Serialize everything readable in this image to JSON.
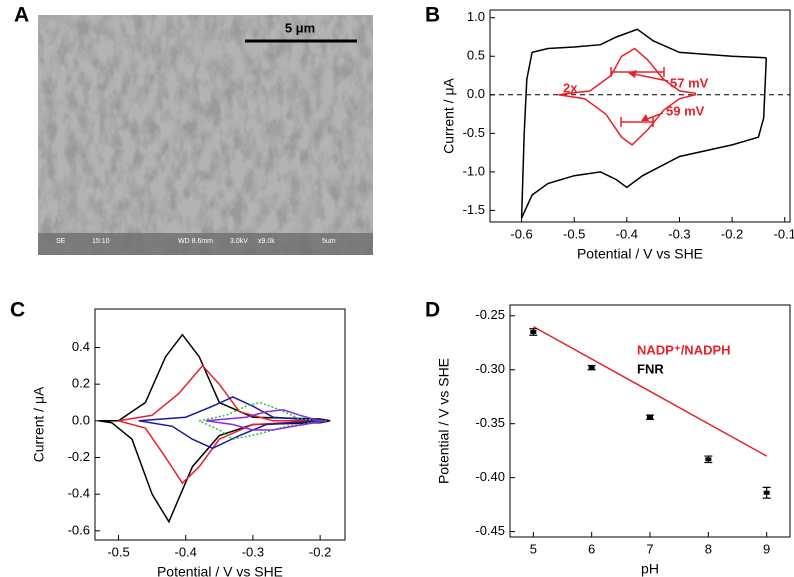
{
  "panel_a": {
    "panel": "A",
    "scale_bar": "5 μm",
    "info_bar": [
      "SE",
      "15:10",
      "WD 8.6mm",
      "3.0kV",
      "x9.0k",
      "5um"
    ]
  },
  "chart_data": [
    {
      "type": "line",
      "panel": "B",
      "xlabel": "Potential / V vs SHE",
      "ylabel": "Current / μA",
      "xlim": [
        -0.66,
        -0.09
      ],
      "xticks": [
        -0.6,
        -0.5,
        -0.4,
        -0.3,
        -0.2,
        -0.1
      ],
      "ylim": [
        -1.65,
        1.1
      ],
      "yticks": [
        {
          "value": 1,
          "label": "1.0"
        },
        0.5,
        {
          "value": 0,
          "label": "0.0"
        },
        -0.5,
        {
          "value": -1,
          "label": "-1.0"
        },
        -1.5
      ],
      "zero_line": true,
      "annotations": [
        "2x",
        "57 mV",
        "59 mV"
      ],
      "series": [
        {
          "color": "#000000",
          "x": [
            -0.135,
            -0.2,
            -0.3,
            -0.35,
            -0.38,
            -0.42,
            -0.45,
            -0.5,
            -0.55,
            -0.58,
            -0.59,
            -0.595,
            -0.6,
            -0.58,
            -0.55,
            -0.5,
            -0.45,
            -0.42,
            -0.4,
            -0.37,
            -0.3,
            -0.2,
            -0.15,
            -0.14,
            -0.135
          ],
          "values": [
            0.48,
            0.5,
            0.55,
            0.7,
            0.85,
            0.75,
            0.65,
            0.62,
            0.6,
            0.55,
            0.2,
            -0.5,
            -1.6,
            -1.3,
            -1.15,
            -1.05,
            -1.0,
            -1.1,
            -1.2,
            -1.05,
            -0.8,
            -0.65,
            -0.55,
            -0.3,
            0.48
          ]
        },
        {
          "color": "#e8202a",
          "x": [
            -0.53,
            -0.47,
            -0.43,
            -0.41,
            -0.385,
            -0.36,
            -0.33,
            -0.3,
            -0.27,
            -0.27,
            -0.3,
            -0.33,
            -0.36,
            -0.39,
            -0.41,
            -0.44,
            -0.48,
            -0.53
          ],
          "values": [
            0.0,
            0.05,
            0.25,
            0.5,
            0.6,
            0.45,
            0.2,
            0.05,
            0.02,
            0.0,
            -0.05,
            -0.2,
            -0.45,
            -0.65,
            -0.55,
            -0.25,
            -0.05,
            0.0
          ]
        }
      ]
    },
    {
      "type": "line",
      "panel": "C",
      "xlabel": "Potential / V vs SHE",
      "ylabel": "Current / μA",
      "xlim": [
        -0.535,
        -0.163
      ],
      "xticks": [
        -0.5,
        -0.4,
        -0.3,
        -0.2
      ],
      "ylim": [
        -0.65,
        0.61
      ],
      "yticks": [
        0.4,
        0.2,
        {
          "value": 0,
          "label": "0.0"
        },
        -0.2,
        -0.4,
        -0.6
      ],
      "series": [
        {
          "color": "#000000",
          "x": [
            -0.53,
            -0.5,
            -0.46,
            -0.43,
            -0.405,
            -0.38,
            -0.35,
            -0.3,
            -0.2,
            -0.185,
            -0.2,
            -0.3,
            -0.35,
            -0.39,
            -0.425,
            -0.45,
            -0.48,
            -0.51,
            -0.53
          ],
          "values": [
            0,
            0.0,
            0.1,
            0.35,
            0.47,
            0.35,
            0.1,
            0.02,
            0.01,
            0.0,
            -0.01,
            -0.02,
            -0.08,
            -0.25,
            -0.55,
            -0.4,
            -0.1,
            -0.01,
            0
          ]
        },
        {
          "color": "#e8202a",
          "x": [
            -0.5,
            -0.45,
            -0.41,
            -0.375,
            -0.35,
            -0.32,
            -0.27,
            -0.2,
            -0.19,
            -0.2,
            -0.3,
            -0.35,
            -0.38,
            -0.405,
            -0.43,
            -0.46,
            -0.5
          ],
          "values": [
            0,
            0.03,
            0.15,
            0.3,
            0.2,
            0.05,
            0.0,
            0.0,
            0,
            0,
            -0.02,
            -0.1,
            -0.25,
            -0.34,
            -0.2,
            -0.04,
            0
          ]
        },
        {
          "color": "#1a1a9c",
          "x": [
            -0.47,
            -0.4,
            -0.36,
            -0.33,
            -0.3,
            -0.27,
            -0.2,
            -0.19,
            -0.2,
            -0.28,
            -0.32,
            -0.36,
            -0.39,
            -0.42,
            -0.47
          ],
          "values": [
            0,
            0.02,
            0.08,
            0.13,
            0.08,
            0.02,
            0,
            0,
            0,
            -0.02,
            -0.08,
            -0.15,
            -0.1,
            -0.03,
            0
          ]
        },
        {
          "color": "#2fbf2f",
          "dash": "dotted",
          "x": [
            -0.38,
            -0.34,
            -0.31,
            -0.29,
            -0.26,
            -0.23,
            -0.19,
            -0.19,
            -0.25,
            -0.29,
            -0.33,
            -0.35,
            -0.38
          ],
          "values": [
            0,
            0.03,
            0.08,
            0.1,
            0.06,
            0.01,
            0,
            0,
            -0.03,
            -0.07,
            -0.1,
            -0.05,
            0
          ]
        },
        {
          "color": "#8a2be2",
          "x": [
            -0.37,
            -0.31,
            -0.28,
            -0.255,
            -0.23,
            -0.2,
            -0.19,
            -0.19,
            -0.24,
            -0.27,
            -0.3,
            -0.33,
            -0.37
          ],
          "values": [
            0,
            0.02,
            0.05,
            0.06,
            0.03,
            0.0,
            0,
            0,
            -0.03,
            -0.05,
            -0.05,
            -0.02,
            0
          ]
        }
      ]
    },
    {
      "type": "scatter",
      "panel": "D",
      "xlabel": "pH",
      "ylabel": "Potential / V vs SHE",
      "xlim": [
        4.6,
        9.4
      ],
      "xticks": [
        5,
        6,
        7,
        8,
        9
      ],
      "ylim": [
        -0.455,
        -0.24
      ],
      "yticks": [
        -0.25,
        {
          "value": -0.3,
          "label": "-0.30"
        },
        -0.35,
        {
          "value": -0.4,
          "label": "-0.40"
        },
        -0.45
      ],
      "series": [
        {
          "name": "NADP⁺/NADPH",
          "style": "line",
          "color": "#e8202a",
          "x": [
            5,
            9
          ],
          "values": [
            -0.26,
            -0.38
          ]
        },
        {
          "name": "FNR",
          "style": "points",
          "color": "#000000",
          "x": [
            5,
            6,
            7,
            8,
            9
          ],
          "values": [
            -0.265,
            -0.298,
            -0.344,
            -0.383,
            -0.414
          ],
          "errors": [
            0.003,
            0.002,
            0.002,
            0.003,
            0.005
          ]
        }
      ]
    }
  ]
}
